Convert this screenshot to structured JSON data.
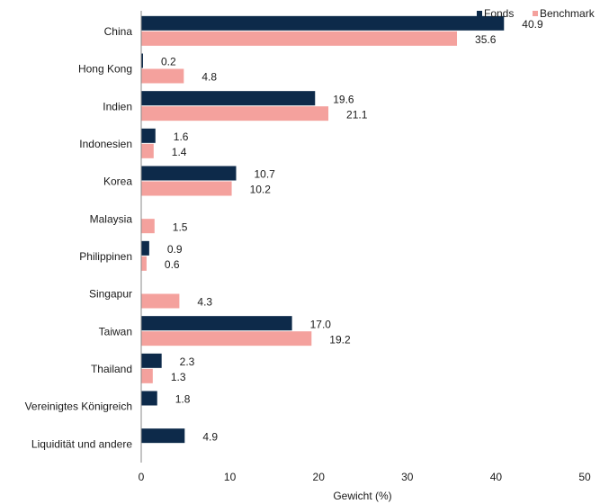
{
  "chart_data": {
    "type": "barh",
    "categories": [
      "China",
      "Hong Kong",
      "Indien",
      "Indonesien",
      "Korea",
      "Malaysia",
      "Philippinen",
      "Singapur",
      "Taiwan",
      "Thailand",
      "Vereinigtes Königreich",
      "Liquidität und andere"
    ],
    "series": [
      {
        "name": "Fonds",
        "color": "#0d2a4a",
        "values": [
          40.9,
          0.2,
          19.6,
          1.6,
          10.7,
          null,
          0.9,
          null,
          17.0,
          2.3,
          1.8,
          4.9
        ],
        "value_labels": [
          "40.9",
          "0.2",
          "19.6",
          "1.6",
          "10.7",
          null,
          "0.9",
          null,
          "17.0",
          "2.3",
          "1.8",
          "4.9"
        ]
      },
      {
        "name": "Benchmark",
        "color": "#f4a19d",
        "values": [
          35.6,
          4.8,
          21.1,
          1.4,
          10.2,
          1.5,
          0.6,
          4.3,
          19.2,
          1.3,
          null,
          null
        ]
      }
    ],
    "xlim": [
      0,
      50
    ],
    "xticks": [
      0,
      10,
      20,
      30,
      40,
      50
    ],
    "xlabel": "Gewicht (%)",
    "legend": "top-right"
  }
}
